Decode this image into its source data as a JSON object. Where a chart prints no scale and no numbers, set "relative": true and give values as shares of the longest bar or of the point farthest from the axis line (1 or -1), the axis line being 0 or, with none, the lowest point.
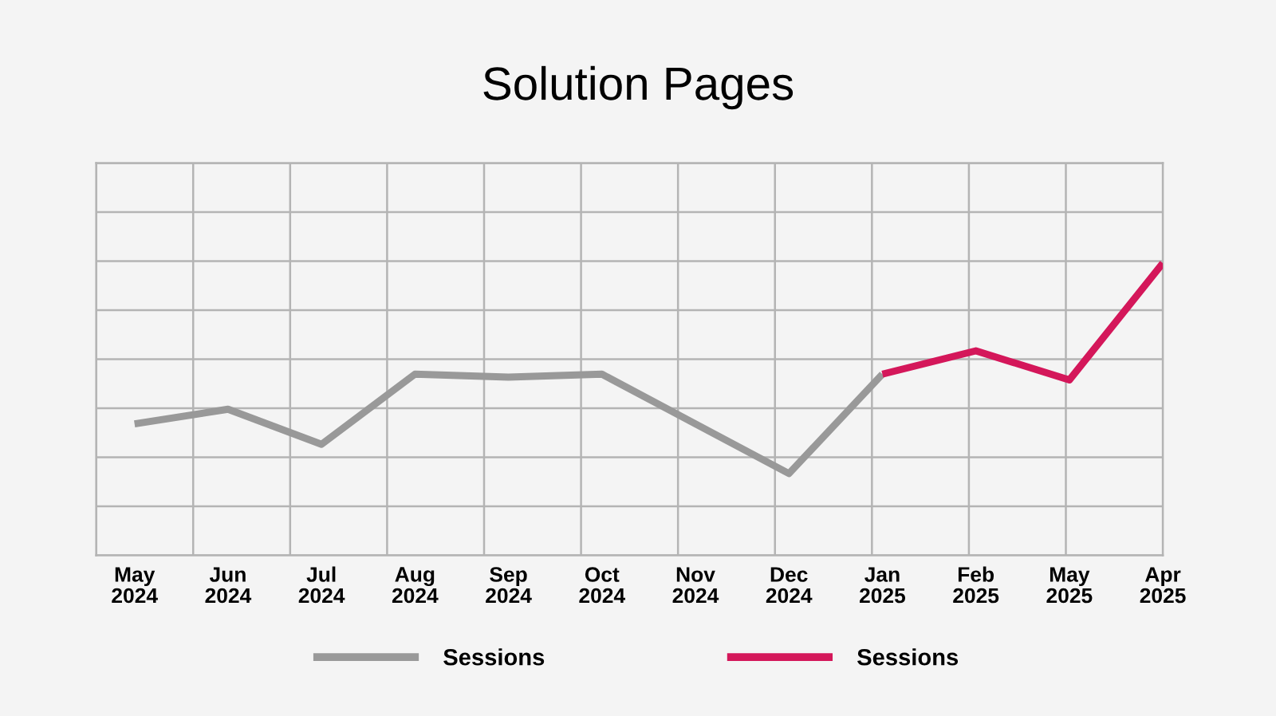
{
  "chart_data": {
    "type": "line",
    "title": "Solution Pages",
    "categories": [
      "May\n2024",
      "Jun\n2024",
      "Jul\n2024",
      "Aug\n2024",
      "Sep\n2024",
      "Oct\n2024",
      "Nov\n2024",
      "Dec\n2024",
      "Jan\n2025",
      "Feb\n2025",
      "May\n2025",
      "Apr\n2025"
    ],
    "relative": true,
    "grid": true,
    "legend": "bottom",
    "series": [
      {
        "name": "Sessions",
        "color": "#999999",
        "values": [
          0.45,
          0.5,
          0.38,
          0.62,
          0.61,
          0.62,
          0.45,
          0.28,
          0.62,
          null,
          null,
          null
        ]
      },
      {
        "name": "Sessions",
        "color": "#d4175a",
        "values": [
          null,
          null,
          null,
          null,
          null,
          null,
          null,
          null,
          0.62,
          0.7,
          0.6,
          1
        ]
      }
    ]
  }
}
